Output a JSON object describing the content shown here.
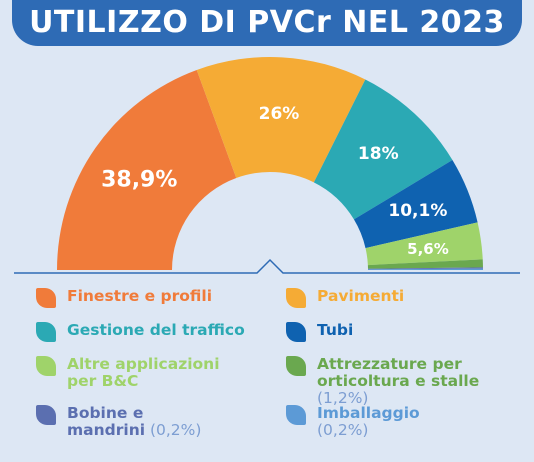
{
  "title": "UTILIZZO DI PVCr NEL 2023",
  "colors": {
    "background": "#dde7f4",
    "banner": "#2e6bb5",
    "baseline": "#2e6bb5"
  },
  "chart_data": {
    "type": "pie",
    "shape": "half-donut",
    "title": "UTILIZZO DI PVCr NEL 2023",
    "unit": "%",
    "slices": [
      {
        "name": "Finestre e profili",
        "value": 38.9,
        "label": "38,9%",
        "color": "#f07b3a"
      },
      {
        "name": "Pavimenti",
        "value": 26,
        "label": "26%",
        "color": "#f5ab35"
      },
      {
        "name": "Gestione del traffico",
        "value": 18,
        "label": "18%",
        "color": "#2ba9b4"
      },
      {
        "name": "Tubi",
        "value": 10.1,
        "label": "10,1%",
        "color": "#0f62b0"
      },
      {
        "name": "Altre applicazioni per B&C",
        "value": 5.6,
        "label": "5,6%",
        "color": "#9fd36a"
      },
      {
        "name": "Attrezzature per orticoltura e stalle",
        "value": 1.2,
        "label": "",
        "color": "#6aa84f"
      },
      {
        "name": "Bobine e mandrini",
        "value": 0.2,
        "label": "",
        "color": "#5b6fb0"
      },
      {
        "name": "Imballaggio",
        "value": 0.2,
        "label": "",
        "color": "#5c9ad6"
      }
    ]
  },
  "legend": {
    "items": [
      {
        "lines": [
          "Finestre e profili"
        ],
        "pct": "",
        "color": "#f07b3a"
      },
      {
        "lines": [
          "Pavimenti"
        ],
        "pct": "",
        "color": "#f5ab35"
      },
      {
        "lines": [
          "Gestione del traffico"
        ],
        "pct": "",
        "color": "#2ba9b4"
      },
      {
        "lines": [
          "Tubi"
        ],
        "pct": "",
        "color": "#0f62b0"
      },
      {
        "lines": [
          "Altre applicazioni",
          "per B&C"
        ],
        "pct": "",
        "color": "#9fd36a"
      },
      {
        "lines": [
          "Attrezzature per",
          "orticoltura e stalle"
        ],
        "pct": "(1,2%)",
        "color": "#6aa84f"
      },
      {
        "lines": [
          "Bobine e",
          "mandrini"
        ],
        "pct": "(0,2%)",
        "color": "#5b6fb0"
      },
      {
        "lines": [
          "Imballaggio"
        ],
        "pct": "(0,2%)",
        "color": "#5c9ad6"
      }
    ]
  }
}
